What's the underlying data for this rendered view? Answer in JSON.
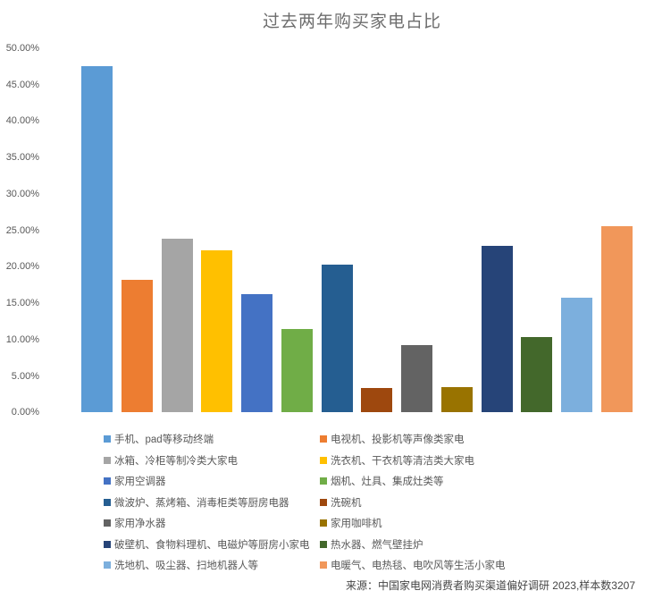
{
  "title": "过去两年购买家电占比",
  "source_note": "来源：中国家电网消费者购买渠道偏好调研 2023,样本数3207",
  "chart_data": {
    "type": "bar",
    "title": "过去两年购买家电占比",
    "xlabel": "",
    "ylabel": "",
    "ylim_percent": [
      0,
      50
    ],
    "ytick_step_percent": 5,
    "ytick_labels": [
      "0.00%",
      "5.00%",
      "10.00%",
      "15.00%",
      "20.00%",
      "25.00%",
      "30.00%",
      "35.00%",
      "40.00%",
      "45.00%",
      "50.00%"
    ],
    "grid": false,
    "legend_position": "bottom-two-columns",
    "series": [
      {
        "name": "手机、pad等移动终端",
        "value_percent": 47.5,
        "color": "#5B9BD5"
      },
      {
        "name": "电视机、投影机等声像类家电",
        "value_percent": 18.2,
        "color": "#ED7D31"
      },
      {
        "name": "冰箱、冷柜等制冷类大家电",
        "value_percent": 23.9,
        "color": "#A5A5A5"
      },
      {
        "name": "洗衣机、干衣机等清洁类大家电",
        "value_percent": 22.3,
        "color": "#FFC000"
      },
      {
        "name": "家用空调器",
        "value_percent": 16.2,
        "color": "#4472C4"
      },
      {
        "name": "烟机、灶具、集成灶类等",
        "value_percent": 11.4,
        "color": "#70AD47"
      },
      {
        "name": "微波炉、蒸烤箱、消毒柜类等厨房电器",
        "value_percent": 20.3,
        "color": "#255E91"
      },
      {
        "name": "洗碗机",
        "value_percent": 3.3,
        "color": "#9E480E"
      },
      {
        "name": "家用净水器",
        "value_percent": 9.2,
        "color": "#636363"
      },
      {
        "name": "家用咖啡机",
        "value_percent": 3.5,
        "color": "#997300"
      },
      {
        "name": "破壁机、食物料理机、电磁炉等厨房小家电",
        "value_percent": 22.9,
        "color": "#264478"
      },
      {
        "name": "热水器、燃气壁挂炉",
        "value_percent": 10.4,
        "color": "#43682B"
      },
      {
        "name": "洗地机、吸尘器、扫地机器人等",
        "value_percent": 15.7,
        "color": "#7CAFDD"
      },
      {
        "name": "电暖气、电热毯、电吹风等生活小家电",
        "value_percent": 25.6,
        "color": "#F1975A"
      }
    ]
  }
}
